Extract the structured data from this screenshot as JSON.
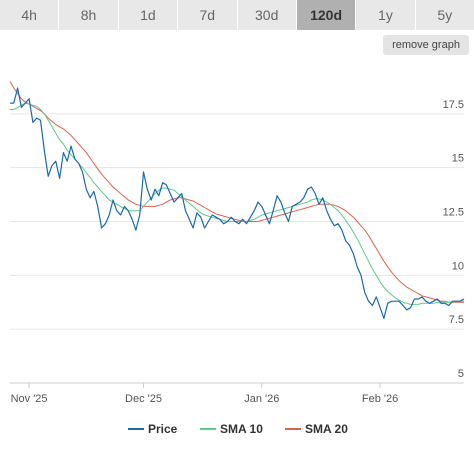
{
  "tabs": [
    {
      "label": "4h",
      "active": false
    },
    {
      "label": "8h",
      "active": false
    },
    {
      "label": "1d",
      "active": false
    },
    {
      "label": "7d",
      "active": false
    },
    {
      "label": "30d",
      "active": false
    },
    {
      "label": "120d",
      "active": true
    },
    {
      "label": "1y",
      "active": false
    },
    {
      "label": "5y",
      "active": false
    }
  ],
  "remove_graph_label": "remove graph",
  "chart_data": {
    "type": "line",
    "xlim": [
      0,
      119
    ],
    "ylim": [
      5,
      20
    ],
    "x_ticks": [
      {
        "label": "Nov '25",
        "x": 5
      },
      {
        "label": "Dec '25",
        "x": 35
      },
      {
        "label": "Jan '26",
        "x": 66
      },
      {
        "label": "Feb '26",
        "x": 97
      }
    ],
    "y_ticks": [
      {
        "label": "5",
        "value": 5
      },
      {
        "label": "7.5",
        "value": 7.5
      },
      {
        "label": "10",
        "value": 10
      },
      {
        "label": "12.5",
        "value": 12.5
      },
      {
        "label": "15",
        "value": 15
      },
      {
        "label": "17.5",
        "value": 17.5
      }
    ],
    "grid": true,
    "legend_position": "bottom",
    "series": [
      {
        "name": "Price",
        "color": "#1a6aad",
        "values": [
          18.0,
          18.0,
          18.7,
          17.8,
          18.0,
          18.2,
          17.1,
          17.3,
          17.2,
          15.8,
          14.6,
          15.1,
          15.3,
          14.5,
          15.7,
          15.3,
          16.0,
          15.4,
          15.2,
          14.8,
          14.0,
          13.6,
          13.9,
          13.2,
          12.2,
          12.4,
          12.8,
          13.5,
          13.0,
          12.8,
          13.2,
          13.0,
          12.6,
          12.1,
          12.8,
          14.8,
          14.0,
          13.5,
          14.0,
          13.7,
          14.3,
          14.2,
          13.8,
          13.4,
          13.6,
          13.8,
          13.0,
          12.6,
          12.2,
          12.9,
          12.7,
          12.2,
          12.5,
          12.8,
          12.7,
          12.6,
          12.4,
          12.5,
          12.7,
          12.5,
          12.4,
          12.6,
          12.4,
          12.7,
          13.0,
          13.4,
          13.2,
          12.8,
          12.4,
          13.0,
          13.7,
          13.4,
          12.9,
          12.5,
          13.2,
          13.3,
          13.4,
          13.6,
          14.0,
          14.1,
          13.8,
          13.3,
          13.6,
          13.0,
          12.6,
          12.3,
          12.4,
          12.1,
          11.6,
          11.4,
          11.0,
          10.4,
          10.0,
          9.2,
          8.8,
          8.6,
          9.0,
          8.5,
          8.0,
          8.7,
          8.8,
          8.8,
          8.8,
          8.6,
          8.4,
          8.5,
          8.9,
          8.9,
          9.0,
          8.8,
          8.7,
          8.8,
          8.9,
          8.7,
          8.7,
          8.6,
          8.8,
          8.8,
          8.8,
          8.9
        ],
        "line_width": 1.2
      },
      {
        "name": "SMA 10",
        "color": "#5ec98a",
        "values": [
          17.7,
          17.7,
          17.8,
          17.9,
          18.0,
          17.95,
          17.9,
          17.85,
          17.7,
          17.5,
          17.2,
          16.9,
          16.6,
          16.3,
          16.1,
          15.8,
          15.6,
          15.4,
          15.2,
          15.0,
          14.75,
          14.55,
          14.3,
          14.1,
          13.9,
          13.7,
          13.5,
          13.4,
          13.3,
          13.2,
          13.1,
          13.0,
          13.0,
          13.0,
          13.0,
          13.2,
          13.4,
          13.6,
          13.8,
          13.95,
          14.05,
          14.05,
          14.0,
          13.95,
          13.8,
          13.65,
          13.5,
          13.35,
          13.2,
          13.05,
          12.9,
          12.8,
          12.75,
          12.7,
          12.65,
          12.6,
          12.55,
          12.5,
          12.5,
          12.5,
          12.5,
          12.5,
          12.5,
          12.55,
          12.6,
          12.7,
          12.8,
          12.85,
          12.9,
          12.95,
          13.0,
          13.05,
          13.1,
          13.15,
          13.2,
          13.25,
          13.3,
          13.35,
          13.4,
          13.5,
          13.55,
          13.55,
          13.5,
          13.4,
          13.3,
          13.15,
          13.0,
          12.8,
          12.55,
          12.3,
          12.0,
          11.7,
          11.35,
          11.0,
          10.65,
          10.3,
          10.0,
          9.7,
          9.45,
          9.25,
          9.1,
          8.95,
          8.85,
          8.75,
          8.7,
          8.65,
          8.65,
          8.65,
          8.7,
          8.7,
          8.7,
          8.7,
          8.75,
          8.75,
          8.75,
          8.75,
          8.75,
          8.8,
          8.8,
          8.8
        ],
        "line_width": 1.0
      },
      {
        "name": "SMA 20",
        "color": "#e0604a",
        "values": [
          19.0,
          18.7,
          18.45,
          18.2,
          18.05,
          17.95,
          17.85,
          17.75,
          17.65,
          17.5,
          17.3,
          17.15,
          17.0,
          16.9,
          16.8,
          16.65,
          16.5,
          16.3,
          16.1,
          15.9,
          15.7,
          15.45,
          15.2,
          14.95,
          14.7,
          14.5,
          14.3,
          14.1,
          13.95,
          13.8,
          13.65,
          13.5,
          13.4,
          13.3,
          13.25,
          13.2,
          13.2,
          13.2,
          13.2,
          13.25,
          13.3,
          13.4,
          13.5,
          13.55,
          13.6,
          13.6,
          13.55,
          13.5,
          13.45,
          13.35,
          13.25,
          13.15,
          13.05,
          12.95,
          12.85,
          12.8,
          12.75,
          12.7,
          12.65,
          12.6,
          12.55,
          12.5,
          12.5,
          12.5,
          12.5,
          12.5,
          12.55,
          12.6,
          12.65,
          12.7,
          12.75,
          12.8,
          12.85,
          12.9,
          12.95,
          13.0,
          13.05,
          13.1,
          13.15,
          13.2,
          13.25,
          13.3,
          13.3,
          13.3,
          13.3,
          13.25,
          13.2,
          13.1,
          13.0,
          12.85,
          12.7,
          12.5,
          12.3,
          12.1,
          11.85,
          11.55,
          11.25,
          10.95,
          10.65,
          10.4,
          10.15,
          9.95,
          9.75,
          9.6,
          9.45,
          9.35,
          9.25,
          9.15,
          9.05,
          9.0,
          8.95,
          8.9,
          8.85,
          8.8,
          8.8,
          8.75,
          8.75,
          8.75,
          8.75,
          8.75
        ],
        "line_width": 1.0
      }
    ]
  }
}
